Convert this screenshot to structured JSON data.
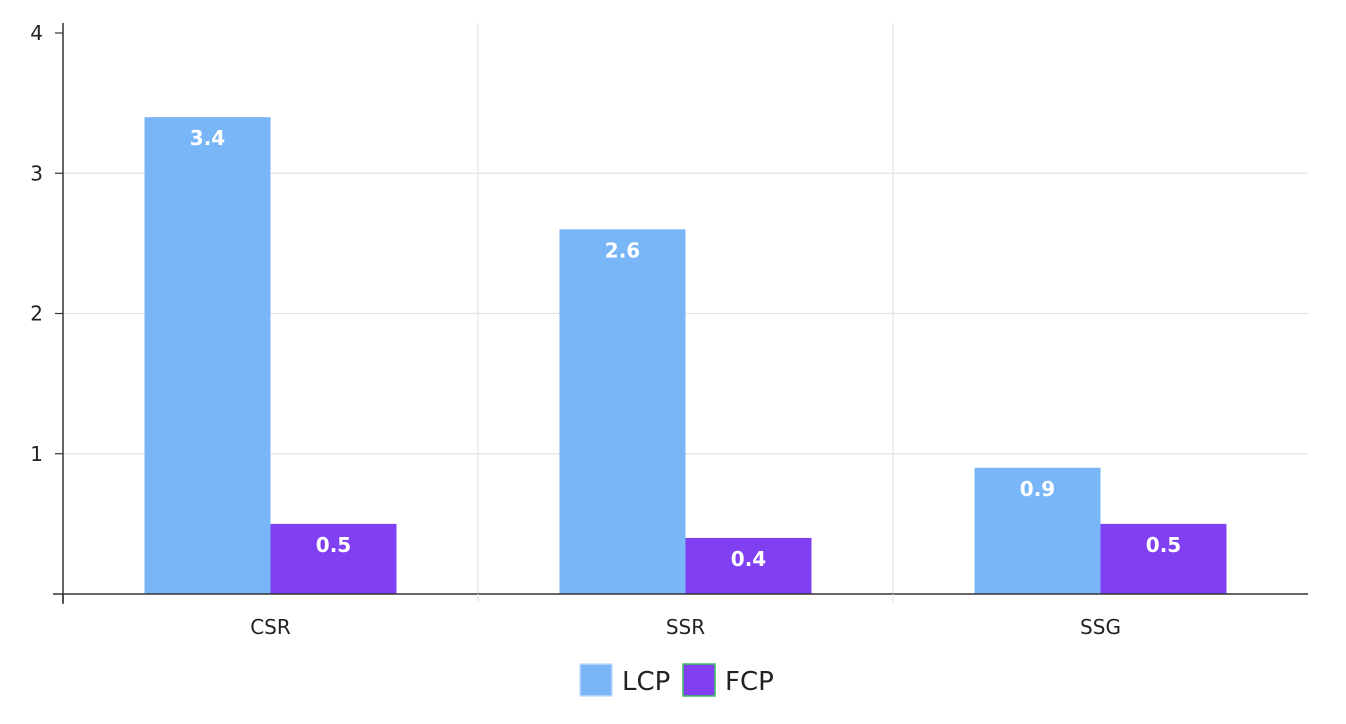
{
  "chart_data": {
    "type": "bar",
    "categories": [
      "CSR",
      "SSR",
      "SSG"
    ],
    "series": [
      {
        "name": "LCP",
        "values": [
          3.4,
          2.6,
          0.9
        ],
        "color": "#79b6f8"
      },
      {
        "name": "FCP",
        "values": [
          0.5,
          0.4,
          0.5
        ],
        "color": "#8040f2"
      }
    ],
    "title": "",
    "xlabel": "",
    "ylabel": "",
    "ylim": [
      0,
      4
    ],
    "yticks": [
      1,
      2,
      3,
      4
    ],
    "grid": true,
    "legend_position": "bottom-center"
  }
}
